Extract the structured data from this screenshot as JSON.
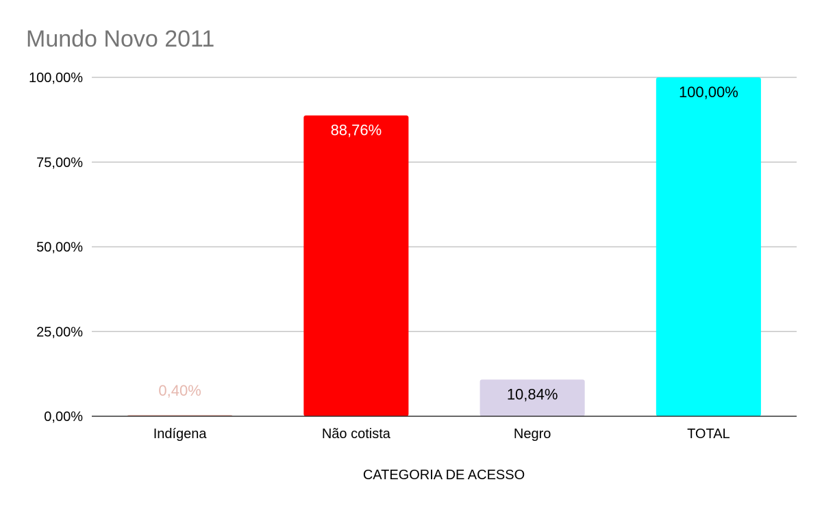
{
  "chart_data": {
    "type": "bar",
    "title": "Mundo Novo 2011",
    "xlabel": "CATEGORIA DE ACESSO",
    "ylabel": "",
    "ylim": [
      0,
      100
    ],
    "yticks": [
      {
        "value": 0,
        "label": "0,00%"
      },
      {
        "value": 25,
        "label": "25,00%"
      },
      {
        "value": 50,
        "label": "50,00%"
      },
      {
        "value": 75,
        "label": "75,00%"
      },
      {
        "value": 100,
        "label": "100,00%"
      }
    ],
    "grid": true,
    "categories": [
      "Indígena",
      "Não cotista",
      "Negro",
      "TOTAL"
    ],
    "values": [
      0.4,
      88.76,
      10.84,
      100.0
    ],
    "data_labels": [
      "0,40%",
      "88,76%",
      "10,84%",
      "100,00%"
    ],
    "bar_colors": [
      "#e6b8af",
      "#ff0000",
      "#d9d2e9",
      "#00ffff"
    ],
    "label_colors": [
      "#e6b8af",
      "#ffffff",
      "#000000",
      "#000000"
    ]
  }
}
